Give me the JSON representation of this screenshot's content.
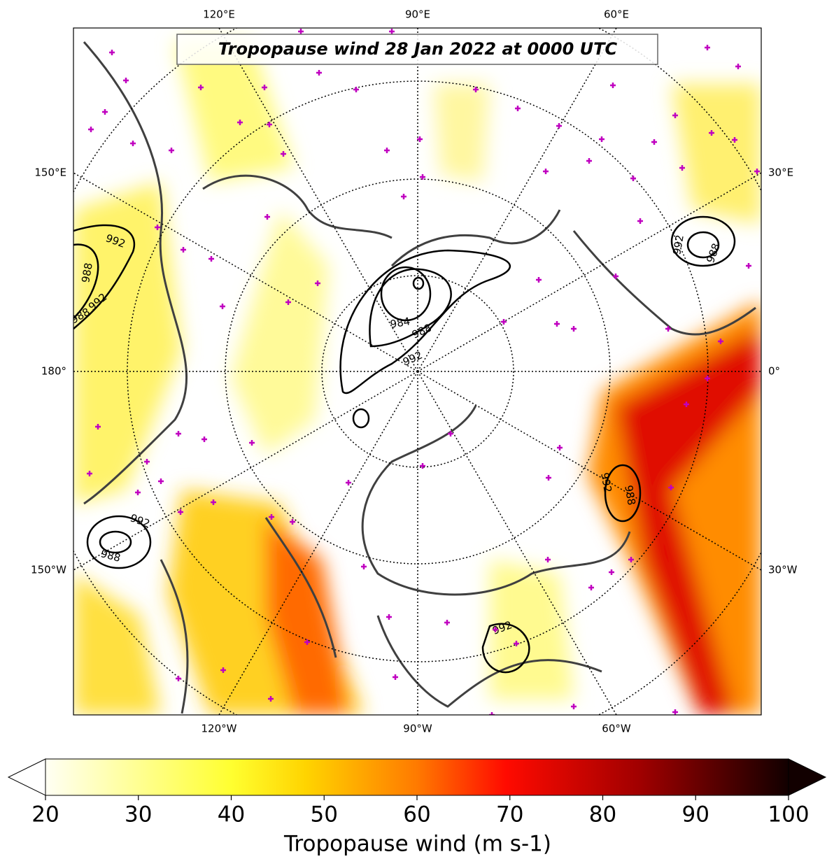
{
  "title": "Tropopause wind 28 Jan 2022 at 0000 UTC",
  "longitude_labels": [
    "120°E",
    "90°E",
    "60°E",
    "150°E",
    "30°E",
    "180°",
    "0°",
    "150°W",
    "30°W",
    "120°W",
    "90°W",
    "60°W"
  ],
  "contour_labels": [
    992,
    988,
    992,
    988,
    984,
    988,
    992,
    992,
    988,
    992,
    988,
    992,
    988,
    992
  ],
  "colorbar": {
    "label": "Tropopause wind (m s-1)",
    "range": [
      20,
      100
    ],
    "ticks": [
      20,
      30,
      40,
      50,
      60,
      70,
      80,
      90,
      100
    ]
  }
}
